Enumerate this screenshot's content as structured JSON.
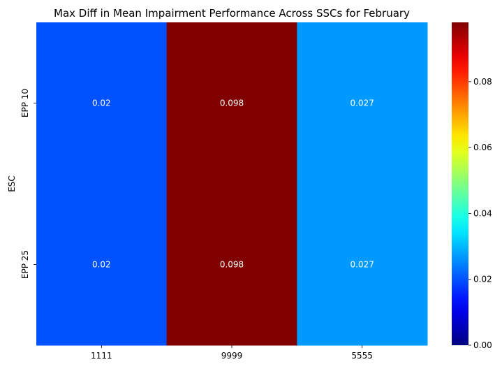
{
  "chart_data": {
    "type": "heatmap",
    "title": "Max Diff in Mean Impairment Performance Across SSCs for February",
    "xlabel": "",
    "ylabel": "ESC",
    "x_categories": [
      "1111",
      "9999",
      "5555"
    ],
    "y_categories": [
      "EPP 10",
      "EPP 25"
    ],
    "values": [
      [
        0.02,
        0.098,
        0.027
      ],
      [
        0.02,
        0.098,
        0.027
      ]
    ],
    "annotations": [
      [
        "0.02",
        "0.098",
        "0.027"
      ],
      [
        "0.02",
        "0.098",
        "0.027"
      ]
    ],
    "colormap": "jet",
    "vmin": 0.0,
    "vmax": 0.098,
    "colorbar_ticks": [
      0.0,
      0.02,
      0.04,
      0.06,
      0.08
    ],
    "colorbar_tick_labels": [
      "0.00",
      "0.02",
      "0.04",
      "0.06",
      "0.08"
    ],
    "grid": false,
    "colorbar_position": "right"
  }
}
